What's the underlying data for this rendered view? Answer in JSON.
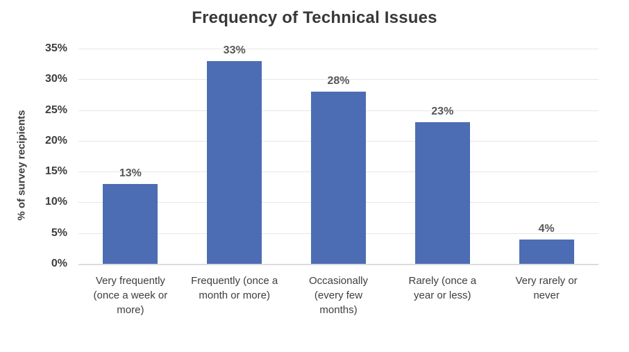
{
  "chart_data": {
    "type": "bar",
    "title": "Frequency of Technical Issues",
    "ylabel": "% of survey recipients",
    "xlabel": "",
    "categories": [
      "Very frequently (once a week or more)",
      "Frequently (once a month or more)",
      "Occasionally (every few months)",
      "Rarely (once a year or less)",
      "Very rarely or never"
    ],
    "values": [
      13,
      33,
      28,
      23,
      4
    ],
    "value_labels": [
      "13%",
      "33%",
      "28%",
      "23%",
      "4%"
    ],
    "y_ticks": [
      {
        "value": 0,
        "label": "0%"
      },
      {
        "value": 5,
        "label": "5%"
      },
      {
        "value": 10,
        "label": "10%"
      },
      {
        "value": 15,
        "label": "15%"
      },
      {
        "value": 20,
        "label": "20%"
      },
      {
        "value": 25,
        "label": "25%"
      },
      {
        "value": 30,
        "label": "30%"
      },
      {
        "value": 35,
        "label": "35%"
      }
    ],
    "ylim": [
      0,
      35
    ],
    "grid": true,
    "legend": "none",
    "bar_color": "#4C6DB3",
    "gridline_color": "#e7e7e7"
  }
}
